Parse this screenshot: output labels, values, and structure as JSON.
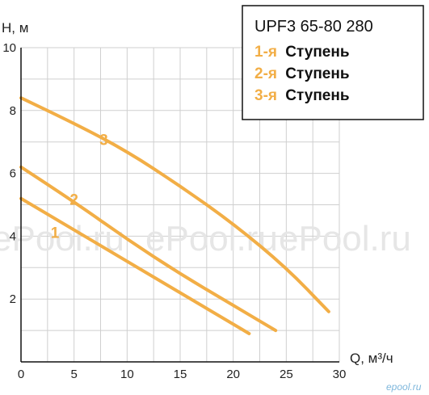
{
  "chart_data": {
    "type": "line",
    "xlabel": "Q, м³/ч",
    "ylabel": "H, м",
    "xlim": [
      0,
      30
    ],
    "ylim": [
      0,
      10
    ],
    "x_ticks": [
      "0",
      "5",
      "10",
      "15",
      "20",
      "25",
      "30"
    ],
    "y_ticks": [
      "2",
      "4",
      "6",
      "8",
      "10"
    ],
    "grid": true,
    "legend_position": "top-right",
    "legend": {
      "title": "UPF3 65-80 280",
      "items": [
        {
          "num": "1-я",
          "text": "Ступень"
        },
        {
          "num": "2-я",
          "text": "Ступень"
        },
        {
          "num": "3-я",
          "text": "Ступень"
        }
      ]
    },
    "curve_labels": [
      "1",
      "2",
      "3"
    ],
    "series": [
      {
        "label": "1",
        "x": [
          0,
          5,
          10,
          15,
          20,
          21.5
        ],
        "y": [
          5.2,
          4.2,
          3.2,
          2.2,
          1.2,
          0.9
        ]
      },
      {
        "label": "2",
        "x": [
          0,
          5,
          10,
          15,
          20,
          24
        ],
        "y": [
          6.2,
          5.1,
          3.9,
          2.8,
          1.8,
          1.0
        ]
      },
      {
        "label": "3",
        "x": [
          0,
          5,
          10,
          15,
          20,
          25,
          29
        ],
        "y": [
          8.4,
          7.6,
          6.7,
          5.6,
          4.4,
          3.0,
          1.6
        ]
      }
    ],
    "line_color": "#f2ae46"
  },
  "watermarks": [
    "ePool.ru",
    "ePool.ru",
    "ePool.ru"
  ],
  "brand": "epool.ru"
}
